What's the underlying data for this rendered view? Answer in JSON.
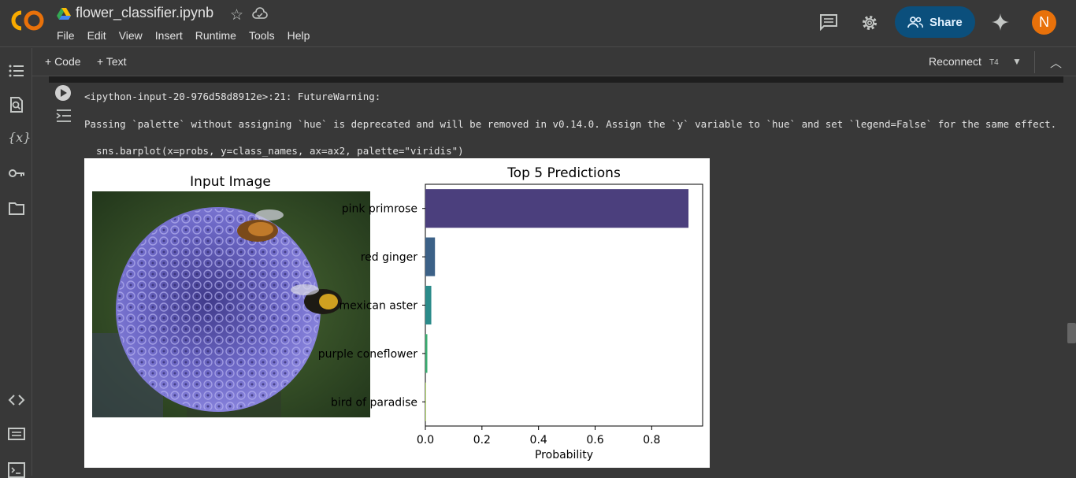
{
  "app": {
    "title": "flower_classifier.ipynb",
    "menu": [
      "File",
      "Edit",
      "View",
      "Insert",
      "Runtime",
      "Tools",
      "Help"
    ],
    "share_label": "Share",
    "avatar_letter": "N"
  },
  "toolbar": {
    "code_label": "+ Code",
    "text_label": "+ Text",
    "reconnect_label": "Reconnect",
    "gpu_label": "T4"
  },
  "cell": {
    "output_lines": [
      "<ipython-input-20-976d58d8912e>:21: FutureWarning:",
      "Passing `palette` without assigning `hue` is deprecated and will be removed in v0.14.0. Assign the `y` variable to `hue` and set `legend=False` for the same effect.",
      "  sns.barplot(x=probs, y=class_names, ax=ax2, palette=\"viridis\")"
    ]
  },
  "figure": {
    "image_title": "Input Image"
  },
  "chart_data": {
    "type": "bar",
    "orientation": "horizontal",
    "title": "Top 5 Predictions",
    "xlabel": "Probability",
    "ylabel": "",
    "categories": [
      "pink primrose",
      "red ginger",
      "mexican aster",
      "purple coneflower",
      "bird of paradise"
    ],
    "values": [
      0.93,
      0.034,
      0.021,
      0.007,
      0.002
    ],
    "colors": [
      "#4b3f7d",
      "#3c6187",
      "#2b8b8a",
      "#3aae72",
      "#a6d64a"
    ],
    "xlim": [
      0,
      0.98
    ],
    "xticks": [
      "0.0",
      "0.2",
      "0.4",
      "0.6",
      "0.8"
    ],
    "xtick_values": [
      0.0,
      0.2,
      0.4,
      0.6,
      0.8
    ]
  }
}
